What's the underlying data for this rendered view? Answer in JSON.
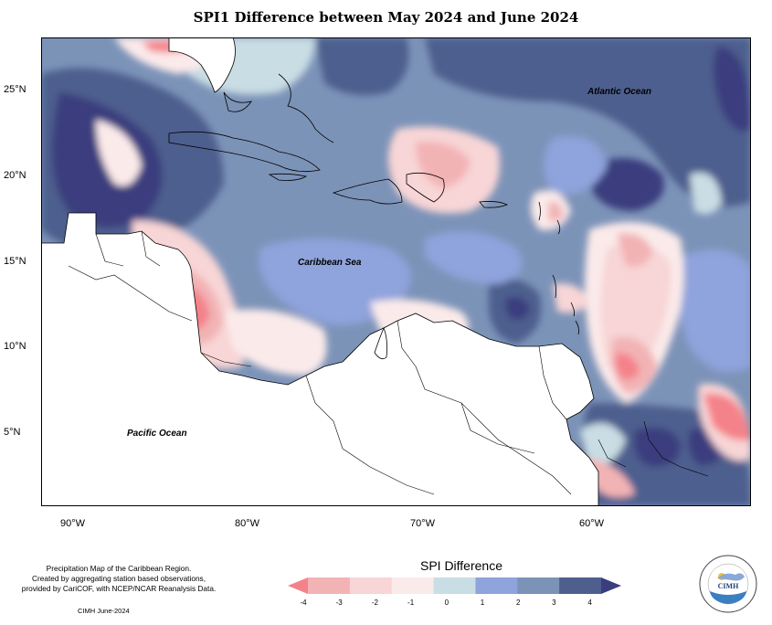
{
  "title": "SPI1 Difference between May 2024 and June 2024",
  "map": {
    "labels": {
      "atlantic": "Atlantic Ocean",
      "caribbean": "Caribbean Sea",
      "pacific": "Pacific Ocean"
    },
    "lat_ticks": [
      "25°N",
      "20°N",
      "15°N",
      "10°N",
      "5°N"
    ],
    "lon_ticks": [
      "90°W",
      "80°W",
      "70°W",
      "60°W"
    ]
  },
  "legend": {
    "title": "SPI Difference",
    "ticks": [
      "-4",
      "-3",
      "-2",
      "-1",
      "0",
      "1",
      "2",
      "3",
      "4"
    ],
    "colors": [
      "#f4828a",
      "#f2b3b5",
      "#f8d5d6",
      "#fbeaea",
      "#c9dde4",
      "#8fa3dc",
      "#7c93b8",
      "#4e5f8e",
      "#3a3d7e"
    ]
  },
  "credit": {
    "line1": "Precipitation Map of the Caribbean Region.",
    "line2": "Created by aggregating station based observations,",
    "line3": "provided by CariCOF, with NCEP/NCAR Reanalysis Data.",
    "date": "CIMH June-2024"
  },
  "logo": {
    "text": "CIMH",
    "ring_text": "Caribbean Institute for Meteorology and Hydrology"
  }
}
